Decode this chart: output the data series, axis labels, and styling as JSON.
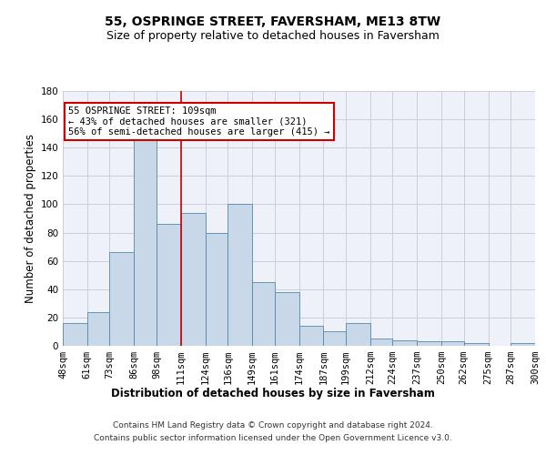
{
  "title": "55, OSPRINGE STREET, FAVERSHAM, ME13 8TW",
  "subtitle": "Size of property relative to detached houses in Faversham",
  "xlabel": "Distribution of detached houses by size in Faversham",
  "ylabel": "Number of detached properties",
  "bar_color": "#c8d8e8",
  "bar_edge_color": "#5588aa",
  "grid_color": "#ccccdd",
  "background_color": "#eef2f8",
  "property_line_x": 111,
  "property_line_color": "#cc0000",
  "annotation_line1": "55 OSPRINGE STREET: 109sqm",
  "annotation_line2": "← 43% of detached houses are smaller (321)",
  "annotation_line3": "56% of semi-detached houses are larger (415) →",
  "annotation_box_color": "#cc0000",
  "bin_labels": [
    "48sqm",
    "61sqm",
    "73sqm",
    "86sqm",
    "98sqm",
    "111sqm",
    "124sqm",
    "136sqm",
    "149sqm",
    "161sqm",
    "174sqm",
    "187sqm",
    "199sqm",
    "212sqm",
    "224sqm",
    "237sqm",
    "250sqm",
    "262sqm",
    "275sqm",
    "287sqm",
    "300sqm"
  ],
  "bin_edges": [
    48,
    61,
    73,
    86,
    98,
    111,
    124,
    136,
    149,
    161,
    174,
    187,
    199,
    212,
    224,
    237,
    250,
    262,
    275,
    287,
    300
  ],
  "bar_heights": [
    16,
    24,
    66,
    146,
    86,
    94,
    80,
    100,
    45,
    38,
    14,
    10,
    16,
    5,
    4,
    3,
    3,
    2,
    0,
    2
  ],
  "ylim": [
    0,
    180
  ],
  "yticks": [
    0,
    20,
    40,
    60,
    80,
    100,
    120,
    140,
    160,
    180
  ],
  "footer_line1": "Contains HM Land Registry data © Crown copyright and database right 2024.",
  "footer_line2": "Contains public sector information licensed under the Open Government Licence v3.0.",
  "title_fontsize": 10,
  "subtitle_fontsize": 9,
  "axis_label_fontsize": 8.5,
  "tick_fontsize": 7.5,
  "annotation_fontsize": 7.5,
  "footer_fontsize": 6.5
}
